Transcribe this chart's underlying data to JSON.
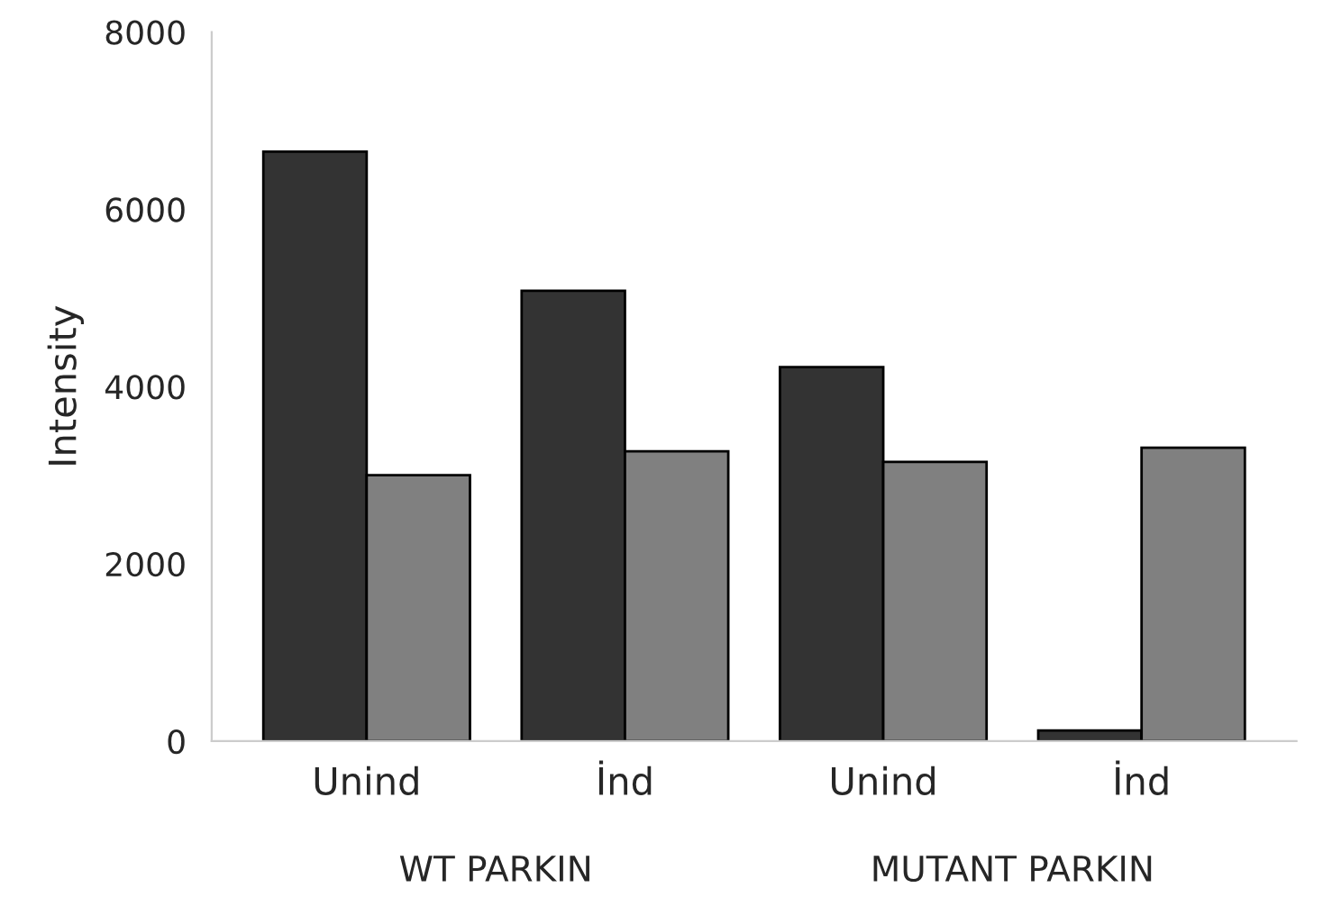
{
  "chart_data": {
    "type": "bar",
    "ylabel": "Intensity",
    "categories": [
      "Unind",
      "İnd",
      "Unind",
      "İnd"
    ],
    "series": [
      {
        "color": "#333333",
        "values": [
          6650,
          5080,
          4220,
          120
        ]
      },
      {
        "color": "#808080",
        "values": [
          3000,
          3270,
          3150,
          3310
        ]
      }
    ],
    "ylim": [
      0,
      8000
    ],
    "yticks": [
      0,
      2000,
      4000,
      6000,
      8000
    ],
    "grid": false,
    "legend": false,
    "annotations": [
      "WT PARKIN",
      "MUTANT PARKIN"
    ]
  }
}
